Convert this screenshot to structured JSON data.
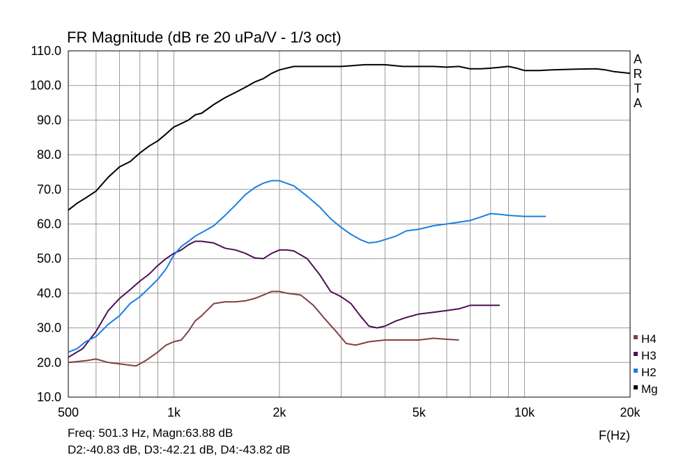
{
  "chart_data": {
    "type": "line",
    "title": "FR Magnitude (dB re 20 uPa/V - 1/3 oct)",
    "xlabel": "F(Hz)",
    "ylabel": "",
    "x_scale": "log",
    "xlim": [
      500,
      20000
    ],
    "ylim": [
      10,
      110
    ],
    "grid": true,
    "watermark": [
      "A",
      "R",
      "T",
      "A"
    ],
    "x_ticks": [
      {
        "value": 500,
        "label": "500"
      },
      {
        "value": 1000,
        "label": "1k"
      },
      {
        "value": 2000,
        "label": "2k"
      },
      {
        "value": 5000,
        "label": "5k"
      },
      {
        "value": 10000,
        "label": "10k"
      },
      {
        "value": 20000,
        "label": "20k"
      }
    ],
    "y_ticks": [
      {
        "value": 110,
        "label": "110.0"
      },
      {
        "value": 100,
        "label": "100.0"
      },
      {
        "value": 90,
        "label": "90.0"
      },
      {
        "value": 80,
        "label": "80.0"
      },
      {
        "value": 70,
        "label": "70.0"
      },
      {
        "value": 60,
        "label": "60.0"
      },
      {
        "value": 50,
        "label": "50.0"
      },
      {
        "value": 40,
        "label": "40.0"
      },
      {
        "value": 30,
        "label": "30.0"
      },
      {
        "value": 20,
        "label": "20.0"
      },
      {
        "value": 10,
        "label": "10.0"
      }
    ],
    "legend_position": "bottom-right",
    "series": [
      {
        "name": "H4",
        "color": "#804040",
        "points": [
          [
            500,
            20
          ],
          [
            560,
            20.5
          ],
          [
            600,
            21
          ],
          [
            650,
            20
          ],
          [
            700,
            19.6
          ],
          [
            750,
            19.2
          ],
          [
            780,
            19
          ],
          [
            830,
            20.5
          ],
          [
            900,
            23
          ],
          [
            950,
            25
          ],
          [
            1000,
            26
          ],
          [
            1050,
            26.5
          ],
          [
            1100,
            29
          ],
          [
            1150,
            32
          ],
          [
            1200,
            33.5
          ],
          [
            1300,
            37
          ],
          [
            1400,
            37.5
          ],
          [
            1500,
            37.5
          ],
          [
            1600,
            37.8
          ],
          [
            1700,
            38.5
          ],
          [
            1800,
            39.5
          ],
          [
            1900,
            40.5
          ],
          [
            2000,
            40.5
          ],
          [
            2100,
            40
          ],
          [
            2300,
            39.5
          ],
          [
            2500,
            36.5
          ],
          [
            2700,
            32.5
          ],
          [
            2900,
            29
          ],
          [
            3100,
            25.5
          ],
          [
            3300,
            25
          ],
          [
            3600,
            26
          ],
          [
            4000,
            26.5
          ],
          [
            4500,
            26.5
          ],
          [
            5000,
            26.5
          ],
          [
            5500,
            27
          ],
          [
            6000,
            26.7
          ],
          [
            6500,
            26.5
          ]
        ]
      },
      {
        "name": "H3",
        "color": "#4f0f56",
        "points": [
          [
            500,
            21.5
          ],
          [
            550,
            24
          ],
          [
            600,
            29
          ],
          [
            650,
            35
          ],
          [
            700,
            38.5
          ],
          [
            750,
            41
          ],
          [
            800,
            43.5
          ],
          [
            850,
            45.5
          ],
          [
            900,
            48
          ],
          [
            950,
            50
          ],
          [
            1000,
            51.5
          ],
          [
            1050,
            52.5
          ],
          [
            1100,
            54
          ],
          [
            1150,
            55
          ],
          [
            1200,
            55
          ],
          [
            1300,
            54.5
          ],
          [
            1400,
            53
          ],
          [
            1500,
            52.5
          ],
          [
            1600,
            51.5
          ],
          [
            1700,
            50.2
          ],
          [
            1800,
            50
          ],
          [
            1900,
            51.5
          ],
          [
            2000,
            52.5
          ],
          [
            2100,
            52.5
          ],
          [
            2200,
            52.2
          ],
          [
            2400,
            50
          ],
          [
            2600,
            45.5
          ],
          [
            2800,
            40.5
          ],
          [
            3000,
            39
          ],
          [
            3200,
            37
          ],
          [
            3400,
            33.5
          ],
          [
            3600,
            30.5
          ],
          [
            3800,
            30
          ],
          [
            4000,
            30.5
          ],
          [
            4300,
            32
          ],
          [
            4600,
            33
          ],
          [
            5000,
            34
          ],
          [
            5500,
            34.5
          ],
          [
            6000,
            35
          ],
          [
            6500,
            35.5
          ],
          [
            7000,
            36.5
          ],
          [
            7500,
            36.5
          ],
          [
            8000,
            36.5
          ],
          [
            8500,
            36.5
          ]
        ]
      },
      {
        "name": "H2",
        "color": "#1a7fe0",
        "points": [
          [
            500,
            23
          ],
          [
            530,
            24
          ],
          [
            560,
            26
          ],
          [
            600,
            27.5
          ],
          [
            650,
            31
          ],
          [
            700,
            33.5
          ],
          [
            750,
            37
          ],
          [
            800,
            39
          ],
          [
            850,
            41.5
          ],
          [
            900,
            44
          ],
          [
            950,
            47
          ],
          [
            1000,
            51
          ],
          [
            1050,
            53.5
          ],
          [
            1100,
            55
          ],
          [
            1150,
            56.5
          ],
          [
            1200,
            57.5
          ],
          [
            1300,
            59.5
          ],
          [
            1400,
            62.5
          ],
          [
            1500,
            65.5
          ],
          [
            1600,
            68.5
          ],
          [
            1700,
            70.5
          ],
          [
            1800,
            71.8
          ],
          [
            1900,
            72.5
          ],
          [
            2000,
            72.5
          ],
          [
            2200,
            71
          ],
          [
            2400,
            68
          ],
          [
            2600,
            65
          ],
          [
            2800,
            61.5
          ],
          [
            3000,
            59
          ],
          [
            3200,
            57
          ],
          [
            3400,
            55.5
          ],
          [
            3600,
            54.5
          ],
          [
            3800,
            54.8
          ],
          [
            4000,
            55.5
          ],
          [
            4300,
            56.5
          ],
          [
            4600,
            58
          ],
          [
            5000,
            58.5
          ],
          [
            5500,
            59.5
          ],
          [
            6000,
            60
          ],
          [
            7000,
            61
          ],
          [
            7500,
            62
          ],
          [
            8000,
            63
          ],
          [
            8500,
            62.8
          ],
          [
            9000,
            62.5
          ],
          [
            10000,
            62.2
          ],
          [
            11000,
            62.2
          ],
          [
            11500,
            62.2
          ]
        ]
      },
      {
        "name": "Mg",
        "color": "#000000",
        "points": [
          [
            500,
            64
          ],
          [
            530,
            66
          ],
          [
            560,
            67.5
          ],
          [
            600,
            69.5
          ],
          [
            650,
            73.5
          ],
          [
            700,
            76.5
          ],
          [
            750,
            78
          ],
          [
            800,
            80.5
          ],
          [
            850,
            82.5
          ],
          [
            900,
            84
          ],
          [
            950,
            86
          ],
          [
            1000,
            88
          ],
          [
            1050,
            89
          ],
          [
            1100,
            90
          ],
          [
            1150,
            91.5
          ],
          [
            1200,
            92
          ],
          [
            1300,
            94.5
          ],
          [
            1400,
            96.5
          ],
          [
            1500,
            98
          ],
          [
            1600,
            99.5
          ],
          [
            1700,
            101
          ],
          [
            1800,
            102
          ],
          [
            1900,
            103.5
          ],
          [
            2000,
            104.5
          ],
          [
            2200,
            105.5
          ],
          [
            2500,
            105.5
          ],
          [
            3000,
            105.5
          ],
          [
            3500,
            106
          ],
          [
            4000,
            106
          ],
          [
            4500,
            105.5
          ],
          [
            5000,
            105.5
          ],
          [
            5500,
            105.5
          ],
          [
            6000,
            105.3
          ],
          [
            6500,
            105.5
          ],
          [
            7000,
            104.8
          ],
          [
            7500,
            104.8
          ],
          [
            8000,
            105
          ],
          [
            9000,
            105.5
          ],
          [
            9500,
            105
          ],
          [
            10000,
            104.3
          ],
          [
            11000,
            104.3
          ],
          [
            12000,
            104.5
          ],
          [
            14000,
            104.7
          ],
          [
            16000,
            104.8
          ],
          [
            17000,
            104.5
          ],
          [
            18000,
            104
          ],
          [
            20000,
            103.5
          ]
        ]
      }
    ]
  },
  "readout": {
    "line1": "Freq: 501.3 Hz, Magn:63.88 dB",
    "line2": "D2:-40.83 dB, D3:-42.21 dB, D4:-43.82 dB"
  }
}
